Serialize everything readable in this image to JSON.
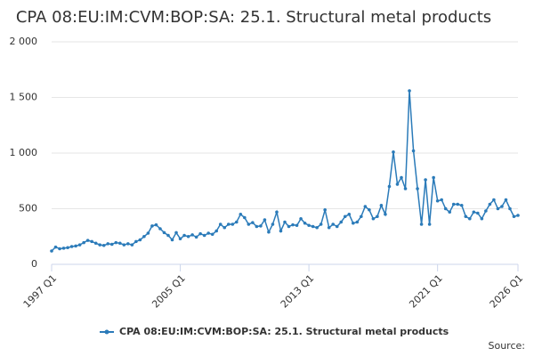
{
  "chart_data": {
    "type": "line",
    "title": "CPA 08:EU:IM:CVM:BOP:SA: 25.1. Structural metal products",
    "source": "Source:",
    "categories": [
      "1997 Q1",
      null,
      null,
      null,
      null,
      null,
      null,
      null,
      null,
      null,
      null,
      null,
      null,
      null,
      null,
      null,
      null,
      null,
      null,
      null,
      null,
      null,
      null,
      null,
      null,
      null,
      null,
      null,
      null,
      null,
      null,
      null,
      "2005 Q1",
      null,
      null,
      null,
      null,
      null,
      null,
      null,
      null,
      null,
      null,
      null,
      null,
      null,
      null,
      null,
      null,
      null,
      null,
      null,
      null,
      null,
      null,
      null,
      null,
      null,
      null,
      null,
      null,
      null,
      null,
      null,
      "2013 Q1",
      null,
      null,
      null,
      null,
      null,
      null,
      null,
      null,
      null,
      null,
      null,
      null,
      null,
      null,
      null,
      null,
      null,
      null,
      null,
      null,
      null,
      null,
      null,
      null,
      null,
      null,
      null,
      null,
      null,
      null,
      null,
      "2021 Q1",
      null,
      null,
      null,
      null,
      null,
      null,
      null,
      null,
      null,
      null,
      null,
      null,
      null,
      null,
      null,
      null,
      null,
      null,
      null,
      "2026 Q1"
    ],
    "series": [
      {
        "name": "CPA 08:EU:IM:CVM:BOP:SA: 25.1. Structural metal products",
        "color": "#2b7bb9",
        "values": [
          120,
          155,
          140,
          145,
          150,
          160,
          165,
          175,
          195,
          215,
          205,
          190,
          175,
          170,
          185,
          180,
          195,
          190,
          175,
          185,
          175,
          205,
          220,
          250,
          280,
          345,
          355,
          320,
          285,
          260,
          220,
          285,
          230,
          260,
          250,
          265,
          245,
          275,
          260,
          280,
          270,
          300,
          360,
          330,
          360,
          360,
          380,
          450,
          420,
          360,
          375,
          340,
          345,
          400,
          290,
          360,
          470,
          300,
          380,
          340,
          355,
          350,
          410,
          370,
          350,
          340,
          330,
          360,
          490,
          330,
          360,
          340,
          380,
          430,
          450,
          370,
          380,
          430,
          520,
          490,
          410,
          430,
          530,
          450,
          700,
          1010,
          720,
          780,
          680,
          1560,
          1020,
          680,
          360,
          760,
          360,
          780,
          570,
          580,
          500,
          470,
          540,
          540,
          530,
          430,
          410,
          470,
          460,
          410,
          480,
          540,
          580,
          500,
          520,
          580,
          500,
          430,
          440
        ]
      }
    ],
    "ylim": [
      0,
      2000
    ],
    "yticks": [
      0,
      500,
      {
        "value": 1000,
        "label": "1 000"
      },
      {
        "value": 1500,
        "label": "1 500"
      },
      {
        "value": 2000,
        "label": "2 000"
      }
    ],
    "grid": true
  }
}
